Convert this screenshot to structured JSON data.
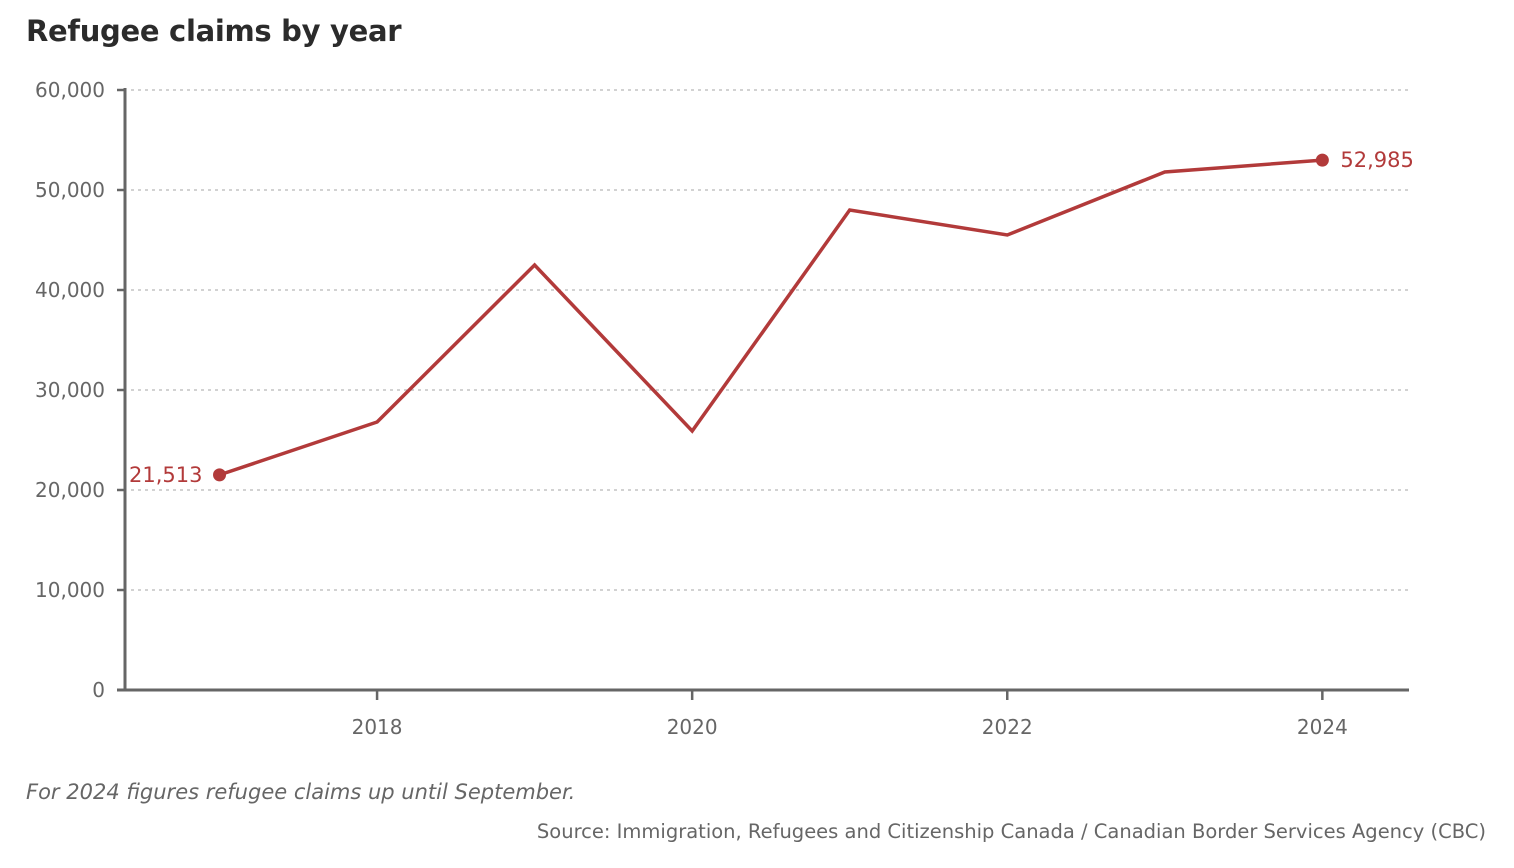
{
  "title": "Refugee claims by year",
  "footnote": "For 2024 figures refugee claims up until September.",
  "source": "Source: Immigration, Refugees and Citizenship Canada / Canadian Border Services Agency (CBC)",
  "colors": {
    "line": "#b23a3a",
    "axis": "#666666",
    "grid": "#b8b8b8",
    "text": "#666666"
  },
  "chart_data": {
    "type": "line",
    "title": "Refugee claims by year",
    "xlabel": "",
    "ylabel": "",
    "x": [
      2017,
      2018,
      2019,
      2020,
      2021,
      2022,
      2023,
      2024
    ],
    "series": [
      {
        "values": [
          21513,
          26800,
          42500,
          25900,
          48000,
          45500,
          51800,
          52985
        ]
      }
    ],
    "xticks": [
      "2018",
      "2020",
      "2022",
      "2024"
    ],
    "yticks": [
      "0",
      "10,000",
      "20,000",
      "30,000",
      "40,000",
      "50,000",
      "60,000"
    ],
    "ylim": [
      0,
      60000
    ],
    "grid": "horizontal dashed",
    "annotations": [
      {
        "x": 2017,
        "label": "21,513"
      },
      {
        "x": 2024,
        "label": "52,985"
      }
    ]
  }
}
